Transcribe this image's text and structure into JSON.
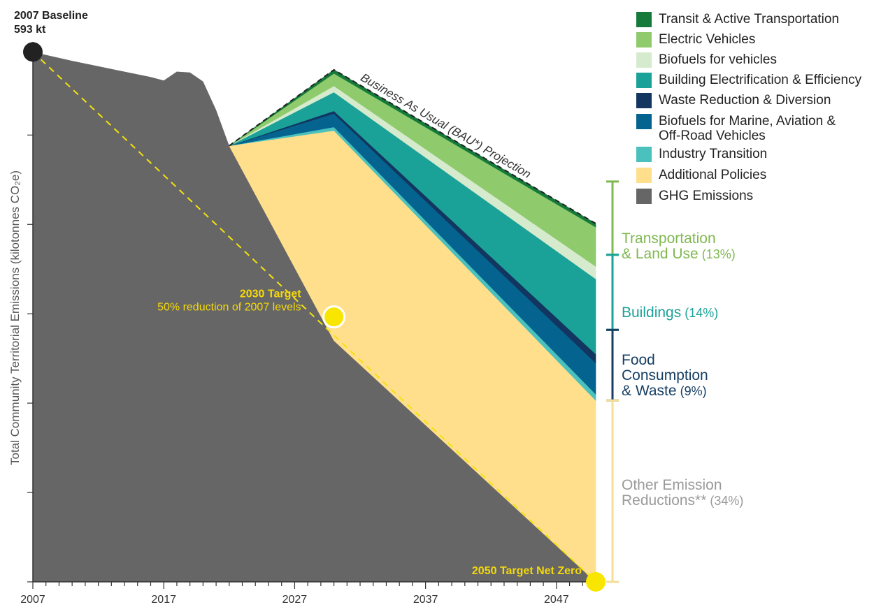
{
  "chart_data": {
    "type": "area",
    "ylabel": "Total Community Territorial Emissions (kilotonnes  CO₂e)",
    "xlabel": "",
    "x_ticks": [
      2007,
      2017,
      2027,
      2037,
      2047
    ],
    "xlim": [
      2007,
      2050
    ],
    "ylim": [
      0,
      600
    ],
    "baseline": {
      "line1": "2007 Baseline",
      "line2": "593 kt",
      "year": 2007,
      "value": 593
    },
    "target_2030": {
      "title": "2030 Target",
      "subtitle": "50% reduction of 2007 levels",
      "year": 2030,
      "value": 296.5
    },
    "target_2050": {
      "title": "2050 Target Net Zero",
      "year": 2050,
      "value": 0
    },
    "bau_label": "Business As Usual (BAU*) Projection",
    "historical": {
      "name": "GHG Emissions",
      "color": "#666666",
      "x": [
        2007,
        2010,
        2013,
        2016,
        2017,
        2018,
        2019,
        2020,
        2021,
        2022
      ],
      "values": [
        593,
        583,
        574,
        565,
        561,
        571,
        570,
        560,
        528,
        488
      ]
    },
    "projection_years": [
      2022,
      2030,
      2050
    ],
    "emissions_path": [
      488,
      270,
      0
    ],
    "wedges": [
      {
        "name": "Additional Policies",
        "color": "#FFDF8C",
        "values": [
          0,
          235,
          203
        ]
      },
      {
        "name": "Industry Transition",
        "color": "#4BC1BE",
        "values": [
          0,
          4,
          7
        ]
      },
      {
        "name": "Biofuels for Marine, Aviation & Off-Road Vehicles",
        "color": "#05638F",
        "values": [
          0,
          15,
          35
        ]
      },
      {
        "name": "Waste Reduction & Diversion",
        "color": "#12365F",
        "values": [
          0,
          3,
          10
        ]
      },
      {
        "name": "Building Electrification & Efficiency",
        "color": "#1BA298",
        "values": [
          0,
          21,
          84
        ]
      },
      {
        "name": "Biofuels for vehicles",
        "color": "#D6EBCE",
        "values": [
          0,
          7,
          14
        ]
      },
      {
        "name": "Electric Vehicles",
        "color": "#8FCB6D",
        "values": [
          0,
          14,
          44
        ]
      },
      {
        "name": "Transit & Active Transportation",
        "color": "#157A3A",
        "values": [
          0,
          4,
          4
        ]
      }
    ],
    "bau": [
      488,
      573,
      401
    ]
  },
  "legend": [
    {
      "label": "Transit & Active Transportation",
      "color": "#157A3A"
    },
    {
      "label": "Electric Vehicles",
      "color": "#8FCB6D"
    },
    {
      "label": "Biofuels for vehicles",
      "color": "#D6EBCE"
    },
    {
      "label": "Building Electrification & Efficiency",
      "color": "#1BA298"
    },
    {
      "label": "Waste Reduction & Diversion",
      "color": "#12365F"
    },
    {
      "label": "Biofuels for Marine, Aviation &\nOff-Road Vehicles",
      "color": "#05638F"
    },
    {
      "label": "Industry Transition",
      "color": "#4BC1BE"
    },
    {
      "label": "Additional Policies",
      "color": "#FFDF8C"
    },
    {
      "label": "GHG Emissions",
      "color": "#666666"
    }
  ],
  "categories": [
    {
      "label": "Transportation\n& Land Use",
      "pct": "(13%)",
      "color": "#7FB850",
      "range": [
        366,
        448
      ]
    },
    {
      "label": "Buildings",
      "pct": "(14%)",
      "color": "#1BA298",
      "range": [
        282,
        366
      ]
    },
    {
      "label": "Food\nConsumption\n& Waste",
      "pct": "(9%)",
      "color": "#163E63",
      "range": [
        203,
        282
      ]
    },
    {
      "label": "Other Emission\nReductions**",
      "pct": "(34%)",
      "color": "#9A9A9A",
      "bracket_color": "#F4DE9A",
      "range": [
        0,
        203
      ]
    }
  ]
}
